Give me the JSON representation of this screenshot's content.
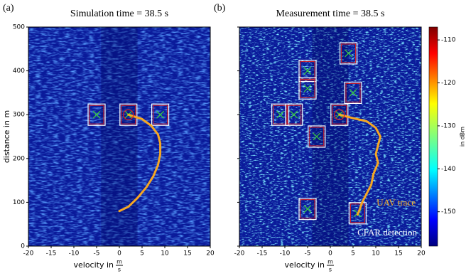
{
  "chart_data": [
    {
      "type": "heatmap",
      "label": "(a)",
      "title": "Simulation time = 38.5 s",
      "xlabel": "velocity in",
      "xlabel_unit": {
        "num": "m",
        "den": "s"
      },
      "ylabel": "distance in m",
      "xlim": [
        -20,
        20
      ],
      "ylim": [
        0,
        500
      ],
      "xticks": [
        -20,
        -15,
        -10,
        -5,
        0,
        5,
        10,
        15,
        20
      ],
      "yticks": [
        0,
        100,
        200,
        300,
        400,
        500
      ],
      "show_ytick_labels": true,
      "series": [
        {
          "name": "UAV trace",
          "color": "#f5a623",
          "x": [
            2,
            5,
            7,
            8.5,
            9,
            9,
            8.5,
            7.5,
            6,
            4,
            2,
            0
          ],
          "y": [
            300,
            290,
            275,
            255,
            235,
            210,
            185,
            160,
            135,
            110,
            90,
            80
          ]
        }
      ],
      "detections": {
        "x": [
          -5,
          2,
          9
        ],
        "y": [
          300,
          300,
          300
        ]
      }
    },
    {
      "type": "heatmap",
      "label": "(b)",
      "title": "Measurement time = 38.5 s",
      "xlabel": "velocity in",
      "xlabel_unit": {
        "num": "m",
        "den": "s"
      },
      "xlim": [
        -20,
        20
      ],
      "ylim": [
        0,
        500
      ],
      "xticks": [
        -20,
        -15,
        -10,
        -5,
        0,
        5,
        10,
        15,
        20
      ],
      "yticks": [
        0,
        100,
        200,
        300,
        400,
        500
      ],
      "show_ytick_labels": false,
      "series": [
        {
          "name": "UAV trace",
          "color": "#f5a623",
          "x": [
            2,
            5,
            8,
            10,
            11,
            10.5,
            10,
            10.5,
            9.5,
            9,
            8,
            7,
            6.5,
            6
          ],
          "y": [
            300,
            292,
            285,
            270,
            250,
            230,
            210,
            190,
            165,
            140,
            120,
            100,
            85,
            72
          ]
        }
      ],
      "detections": {
        "x": [
          -5,
          4,
          -5,
          5,
          -11,
          -8,
          2,
          -3,
          -5,
          6
        ],
        "y": [
          400,
          440,
          360,
          350,
          300,
          300,
          300,
          250,
          85,
          75
        ]
      },
      "annotations": [
        {
          "text": "UAV trace",
          "color": "#f5a623"
        },
        {
          "text": "CFAR detection",
          "color": "#ffffff"
        }
      ],
      "colorbar": {
        "label": "in dBm",
        "lim": [
          -158,
          -107
        ],
        "ticks": [
          -150,
          -140,
          -130,
          -120,
          -110
        ]
      }
    }
  ]
}
